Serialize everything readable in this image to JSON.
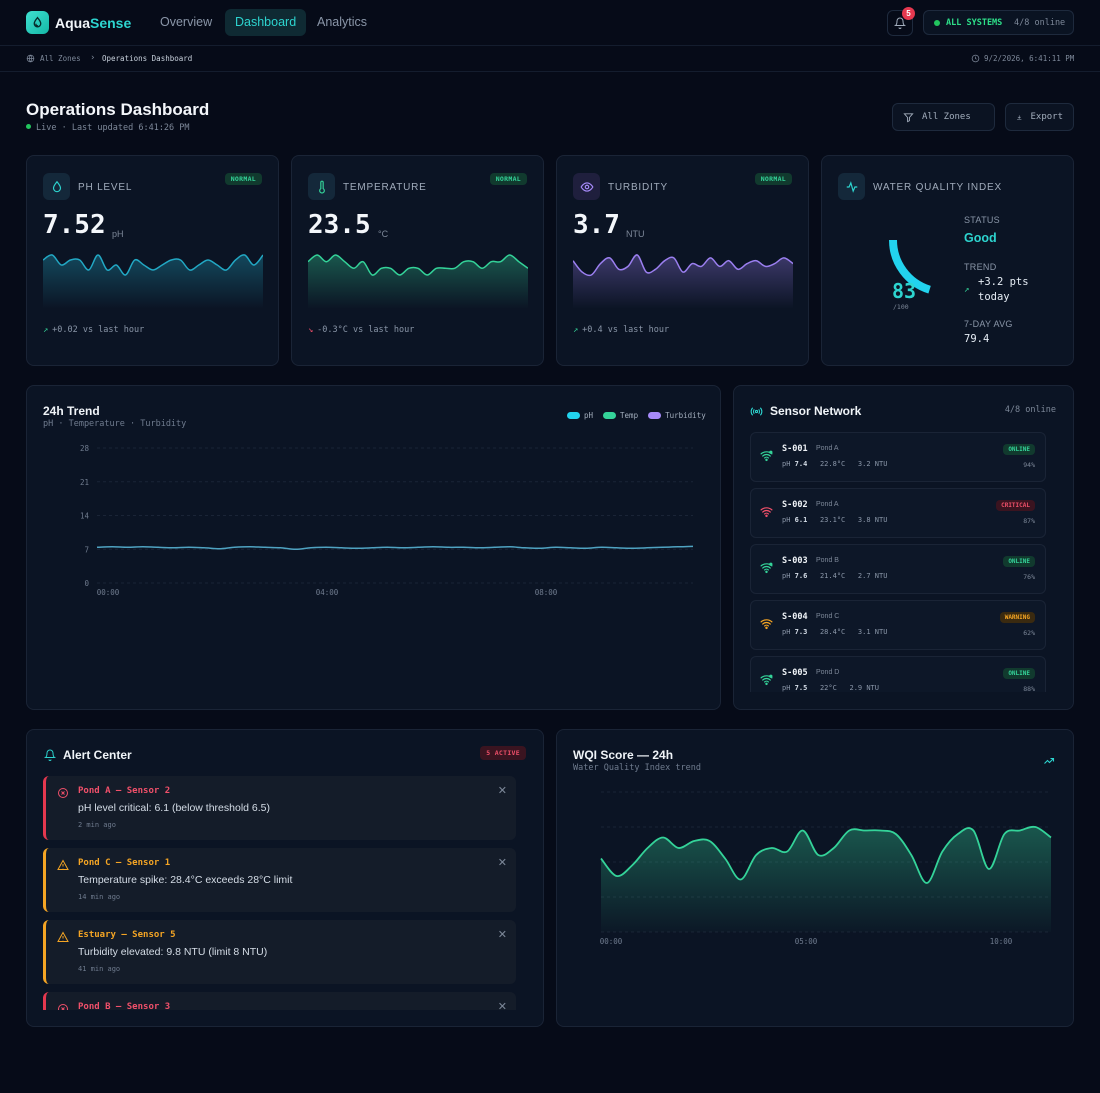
{
  "nav": {
    "brand_a": "Aqua",
    "brand_b": "Sense",
    "links": [
      "Overview",
      "Dashboard",
      "Analytics"
    ],
    "active_link": "Dashboard",
    "notifications": "5",
    "system_label": "ALL SYSTEMS",
    "system_count": "4/8 online"
  },
  "breadcrumb": {
    "root": "All Zones",
    "current": "Operations Dashboard",
    "timestamp": "9/2/2026, 6:41:11 PM"
  },
  "header": {
    "title": "Operations Dashboard",
    "live": "Live · Last updated 6:41:26 PM",
    "filter_label": "All Zones",
    "export_label": "Export"
  },
  "metrics": [
    {
      "label": "PH LEVEL",
      "status": "NORMAL",
      "value": "7.52",
      "unit": "pH",
      "delta": "+0.02 vs last hour",
      "direction": "up",
      "color": "#22a8c4",
      "spark": [
        7.52,
        7.53,
        7.51,
        7.52,
        7.52,
        7.5,
        7.53,
        7.5,
        7.51,
        7.49,
        7.52,
        7.51,
        7.5,
        7.51,
        7.52,
        7.52,
        7.5,
        7.51,
        7.52,
        7.51,
        7.5,
        7.52,
        7.53,
        7.51,
        7.53
      ]
    },
    {
      "label": "TEMPERATURE",
      "status": "NORMAL",
      "value": "23.5",
      "unit": "°C",
      "delta": "-0.3°C vs last hour",
      "direction": "down",
      "color": "#34d399",
      "spark": [
        23.6,
        23.7,
        23.6,
        23.7,
        23.6,
        23.5,
        23.6,
        23.4,
        23.5,
        23.5,
        23.4,
        23.5,
        23.5,
        23.4,
        23.5,
        23.5,
        23.5,
        23.6,
        23.6,
        23.5,
        23.6,
        23.6,
        23.7,
        23.6,
        23.5
      ]
    },
    {
      "label": "TURBIDITY",
      "status": "NORMAL",
      "value": "3.7",
      "unit": "NTU",
      "delta": "+0.4 vs last hour",
      "direction": "up",
      "color": "#9b7ff0",
      "spark": [
        3.7,
        3.3,
        3.2,
        3.6,
        3.8,
        3.4,
        3.5,
        3.9,
        3.3,
        3.4,
        3.7,
        3.8,
        3.3,
        3.6,
        3.5,
        3.8,
        3.5,
        3.7,
        3.4,
        3.6,
        3.7,
        3.5,
        3.6,
        3.8,
        3.6
      ]
    }
  ],
  "wqi": {
    "label": "WATER QUALITY INDEX",
    "value": 83,
    "max_label": "/100",
    "status_label": "STATUS",
    "status": "Good",
    "trend_label": "TREND",
    "trend_line1": "+3.2 pts",
    "trend_line2": "today",
    "avg_label": "7-DAY AVG",
    "avg": "79.4",
    "accent": "#22d3ee"
  },
  "trend": {
    "title": "24h Trend",
    "subtitle": "pH · Temperature · Turbidity",
    "legend": [
      {
        "name": "pH",
        "color": "#22d3ee"
      },
      {
        "name": "Temp",
        "color": "#34d399"
      },
      {
        "name": "Turbidity",
        "color": "#a78bfa"
      }
    ]
  },
  "chart_data": [
    {
      "type": "line",
      "title": "24h Trend",
      "x_ticks": [
        "00:00",
        "04:00",
        "08:00"
      ],
      "ylim": [
        0,
        28
      ],
      "y_ticks": [
        0,
        7,
        14,
        21,
        28
      ],
      "grid": true,
      "legend": "top-right",
      "series": [
        {
          "name": "pH",
          "values": [
            7.4,
            7.5,
            7.4,
            7.5,
            7.4,
            7.3,
            7.4,
            7.3,
            7.1,
            7.4,
            7.5,
            7.4,
            7.3,
            7.0,
            7.3,
            7.4,
            7.3,
            7.2,
            7.3,
            7.4,
            7.3,
            7.4,
            7.5,
            7.4,
            7.4,
            7.3,
            7.4,
            7.5,
            7.3,
            7.2,
            7.4,
            7.3,
            7.2,
            7.4,
            7.3,
            7.2,
            7.3,
            7.4,
            7.5,
            7.6
          ]
        }
      ]
    },
    {
      "type": "area",
      "title": "WQI Score — 24h",
      "x_ticks": [
        "00:00",
        "05:00",
        "10:00"
      ],
      "ylim": [
        60,
        100
      ],
      "y_ticks": [
        60,
        70,
        80,
        90,
        100
      ],
      "grid": true,
      "series": [
        {
          "name": "WQI",
          "values": [
            81,
            76,
            79,
            84,
            87,
            84,
            86,
            86,
            81,
            75,
            82,
            84,
            83,
            89,
            82,
            84,
            89,
            89,
            89,
            88,
            82,
            74,
            83,
            88,
            89,
            78,
            88,
            89,
            90,
            87
          ]
        }
      ]
    }
  ],
  "sensors": {
    "title": "Sensor Network",
    "count": "4/8 online",
    "items": [
      {
        "id": "S-001",
        "pond": "Pond A",
        "ph_label": "pH",
        "ph": "7.4",
        "temp": "22.8°C",
        "turb": "3.2 NTU",
        "status": "ONLINE",
        "battery": "94%",
        "tone": "online"
      },
      {
        "id": "S-002",
        "pond": "Pond A",
        "ph_label": "pH",
        "ph": "6.1",
        "temp": "23.1°C",
        "turb": "3.8 NTU",
        "status": "CRITICAL",
        "battery": "87%",
        "tone": "critical"
      },
      {
        "id": "S-003",
        "pond": "Pond B",
        "ph_label": "pH",
        "ph": "7.6",
        "temp": "21.4°C",
        "turb": "2.7 NTU",
        "status": "ONLINE",
        "battery": "76%",
        "tone": "online"
      },
      {
        "id": "S-004",
        "pond": "Pond C",
        "ph_label": "pH",
        "ph": "7.3",
        "temp": "28.4°C",
        "turb": "3.1 NTU",
        "status": "WARNING",
        "battery": "62%",
        "tone": "warning"
      },
      {
        "id": "S-005",
        "pond": "Pond D",
        "ph_label": "pH",
        "ph": "7.5",
        "temp": "22°C",
        "turb": "2.9 NTU",
        "status": "ONLINE",
        "battery": "88%",
        "tone": "online"
      }
    ]
  },
  "alerts": {
    "title": "Alert Center",
    "active": "5 ACTIVE",
    "items": [
      {
        "title": "Pond A — Sensor 2",
        "message": "pH level critical: 6.1 (below threshold 6.5)",
        "time": "2 min ago",
        "tone": "crit"
      },
      {
        "title": "Pond C — Sensor 1",
        "message": "Temperature spike: 28.4°C exceeds 28°C limit",
        "time": "14 min ago",
        "tone": "warn"
      },
      {
        "title": "Estuary — Sensor 5",
        "message": "Turbidity elevated: 9.8 NTU (limit 8 NTU)",
        "time": "41 min ago",
        "tone": "warn"
      },
      {
        "title": "Pond B — Sensor 3",
        "message": "",
        "time": "",
        "tone": "crit"
      }
    ]
  },
  "wqi_chart": {
    "title": "WQI Score — 24h",
    "subtitle": "Water Quality Index trend"
  }
}
